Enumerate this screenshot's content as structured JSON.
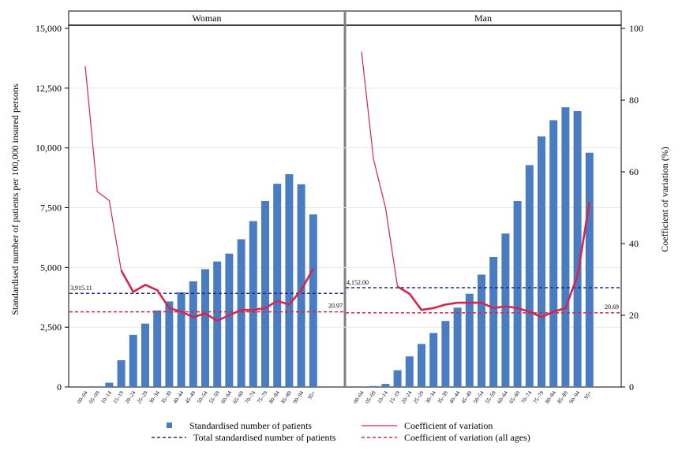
{
  "chart_data": {
    "type": "bar",
    "y_axis_left": {
      "label": "Standardised number of patients per 100,000 insured persons",
      "range": [
        0,
        15000
      ],
      "ticks": [
        "0",
        "2,500",
        "5,000",
        "7,500",
        "10,000",
        "12,500",
        "15,000"
      ],
      "tick_values": [
        0,
        2500,
        5000,
        7500,
        10000,
        12500,
        15000
      ]
    },
    "y_axis_right": {
      "label": "Coefficient of variation (%)",
      "range": [
        0,
        100
      ],
      "ticks": [
        "0",
        "20",
        "40",
        "60",
        "80",
        "100"
      ],
      "tick_values": [
        0,
        20,
        40,
        60,
        80,
        100
      ]
    },
    "categories": [
      "00–04",
      "05–09",
      "10–14",
      "15–19",
      "20–24",
      "25–29",
      "30–34",
      "35–39",
      "40–44",
      "45–49",
      "50–54",
      "55–59",
      "60–64",
      "65–69",
      "70–74",
      "75–79",
      "80–84",
      "85–89",
      "90–94",
      "95+"
    ],
    "panels": [
      {
        "title": "Woman",
        "bars": [
          0,
          30,
          180,
          1120,
          2180,
          2650,
          3200,
          3580,
          3960,
          4420,
          4930,
          5250,
          5580,
          6180,
          6940,
          7780,
          8500,
          8900,
          8480,
          7220
        ],
        "cv": [
          89.5,
          54.5,
          52.0,
          32.5,
          26.5,
          28.5,
          27.0,
          22.0,
          21.0,
          19.5,
          20.5,
          18.5,
          20.0,
          21.5,
          21.5,
          22.0,
          24.0,
          23.0,
          27.0,
          33.0
        ],
        "cv_bold_from": 3,
        "total": 3915.11,
        "total_label": "3,915.11",
        "cv_all": 20.97,
        "cv_all_label": "20.97"
      },
      {
        "title": "Man",
        "bars": [
          0,
          40,
          130,
          700,
          1280,
          1800,
          2260,
          2760,
          3320,
          3900,
          4700,
          5440,
          6420,
          7780,
          9280,
          10480,
          11160,
          11700,
          11540,
          9800
        ],
        "cv": [
          93.5,
          63.5,
          50.0,
          28.0,
          26.0,
          21.5,
          22.0,
          23.0,
          23.5,
          23.5,
          23.5,
          22.0,
          22.5,
          22.0,
          21.0,
          19.5,
          21.0,
          22.0,
          31.0,
          51.5
        ],
        "cv_bold_from": 3,
        "total": 4152.0,
        "total_label": "4,152.00",
        "cv_all": 20.69,
        "cv_all_label": "20.69"
      }
    ],
    "legend": [
      {
        "label": "Standardised number of patients",
        "kind": "bar"
      },
      {
        "label": "Coefficient of variation",
        "kind": "line"
      },
      {
        "label": "Total standardised number of patients",
        "kind": "dash-navy"
      },
      {
        "label": "Coefficient of variation (all ages)",
        "kind": "dash-red"
      }
    ],
    "legend_position": "bottom",
    "grid": true
  },
  "colors": {
    "bar": "#4a7cc2",
    "cv_line": "#d6254a",
    "total_dash": "#1f2a8a",
    "cv_all_dash": "#d6254a",
    "divider": "#808080",
    "grid": "#e6e6e6"
  }
}
